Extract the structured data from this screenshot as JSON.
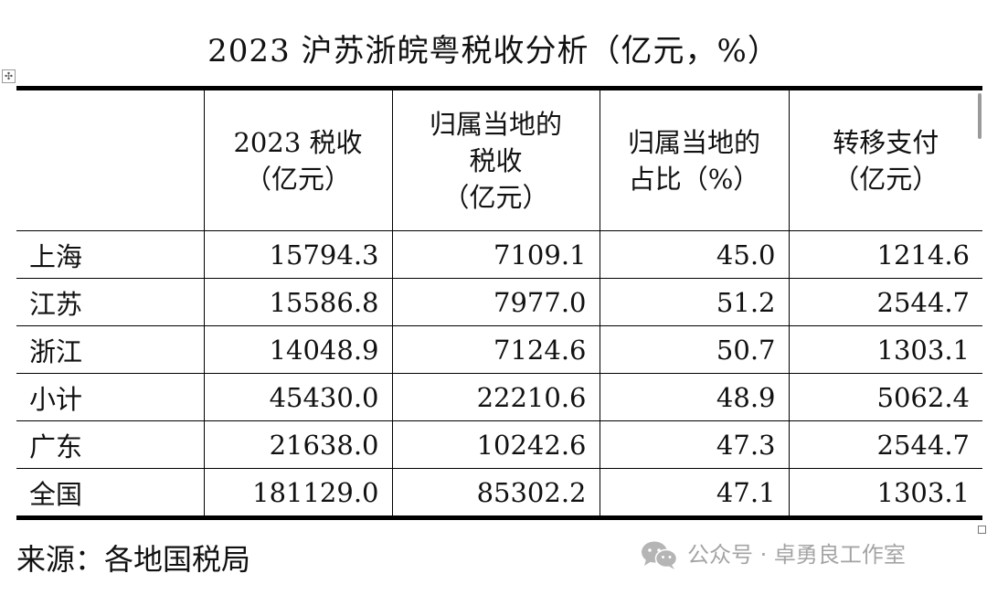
{
  "title": "2023 沪苏浙皖粤税收分析（亿元，%）",
  "table": {
    "headers": [
      [],
      [
        "2023 税收",
        "（亿元）"
      ],
      [
        "归属当地的",
        "税收",
        "（亿元）"
      ],
      [
        "归属当地的",
        "占比（%）"
      ],
      [
        "转移支付",
        "（亿元）"
      ]
    ],
    "rows": [
      [
        "上海",
        "15794.3",
        "7109.1",
        "45.0",
        "1214.6"
      ],
      [
        "江苏",
        "15586.8",
        "7977.0",
        "51.2",
        "2544.7"
      ],
      [
        "浙江",
        "14048.9",
        "7124.6",
        "50.7",
        "1303.1"
      ],
      [
        "小计",
        "45430.0",
        "22210.6",
        "48.9",
        "5062.4"
      ],
      [
        "广东",
        "21638.0",
        "10242.6",
        "47.3",
        "2544.7"
      ],
      [
        "全国",
        "181129.0",
        "85302.2",
        "47.1",
        "1303.1"
      ]
    ]
  },
  "source": "来源：各地国税局",
  "watermark": {
    "text": "公众号 · 卓勇良工作室",
    "icon": "wechat-icon"
  },
  "icons": {
    "table_move": "move-handle-icon",
    "table_resize": "resize-handle-icon"
  }
}
